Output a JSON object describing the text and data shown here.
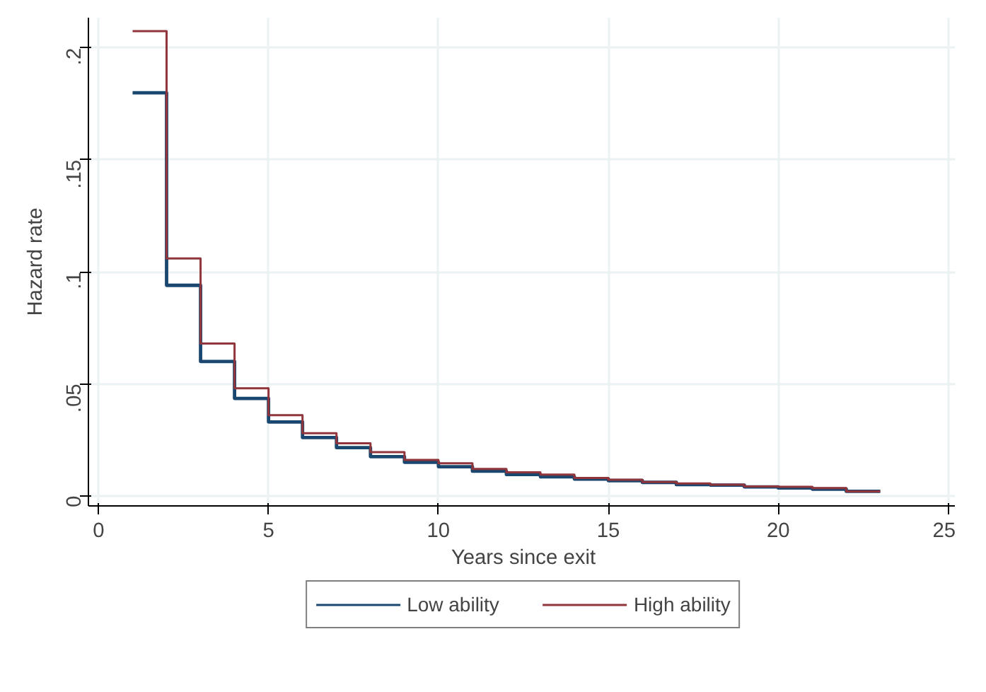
{
  "chart_data": {
    "type": "step",
    "xlabel": "Years since exit",
    "ylabel": "Hazard rate",
    "x": [
      1,
      2,
      3,
      4,
      5,
      6,
      7,
      8,
      9,
      10,
      11,
      12,
      13,
      14,
      15,
      16,
      17,
      18,
      19,
      20,
      21,
      22,
      23
    ],
    "series": [
      {
        "name": "Low ability",
        "color": "#1a476f",
        "values": [
          0.18,
          0.094,
          0.06,
          0.0435,
          0.033,
          0.026,
          0.0215,
          0.0175,
          0.015,
          0.013,
          0.011,
          0.0095,
          0.0085,
          0.0075,
          0.0068,
          0.006,
          0.005,
          0.0048,
          0.004,
          0.0035,
          0.003,
          0.002,
          0.002
        ]
      },
      {
        "name": "High ability",
        "color": "#90353b",
        "values": [
          0.2075,
          0.106,
          0.068,
          0.048,
          0.036,
          0.028,
          0.0235,
          0.0195,
          0.016,
          0.0145,
          0.012,
          0.0105,
          0.0095,
          0.008,
          0.0072,
          0.0062,
          0.0055,
          0.005,
          0.0042,
          0.004,
          0.0035,
          0.002,
          0.002
        ]
      }
    ],
    "xlim": [
      -0.3,
      25.3
    ],
    "xticks": [
      0,
      5,
      10,
      15,
      20,
      25
    ],
    "ylim": [
      -0.0045,
      0.2135
    ],
    "yticks": [
      {
        "value": 0,
        "label": "0"
      },
      {
        "value": 0.05,
        "label": ".05"
      },
      {
        "value": 0.1,
        "label": ".1"
      },
      {
        "value": 0.15,
        "label": ".15"
      },
      {
        "value": 0.2,
        "label": ".2"
      }
    ],
    "grid": true,
    "legend": "bottom",
    "line_style": "solid"
  }
}
